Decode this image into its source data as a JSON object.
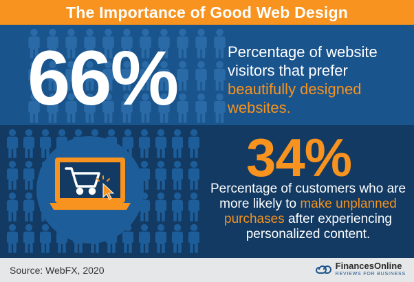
{
  "header": {
    "title": "The Importance of Good Web Design"
  },
  "stat1": {
    "value": "66%",
    "text_plain": "Percentage of website visitors that prefer",
    "text_accent": "beautifully designed websites."
  },
  "stat2": {
    "value": "34%",
    "text_plain_1": "Percentage of customers who are more likely to",
    "text_accent": "make unplanned purchases",
    "text_plain_2": "after experiencing personalized content."
  },
  "footer": {
    "source": "Source: WebFX, 2020",
    "brand_name": "FinancesOnline",
    "brand_tagline": "REVIEWS FOR BUSINESS"
  },
  "colors": {
    "accent": "#f7931e",
    "panel_top": "#1a548c",
    "panel_bottom": "#123a63",
    "footer_bg": "#e6e7e8"
  },
  "icons": [
    "person-icon",
    "laptop-icon",
    "shopping-cart-icon",
    "cursor-icon",
    "financesonline-logo-icon"
  ]
}
